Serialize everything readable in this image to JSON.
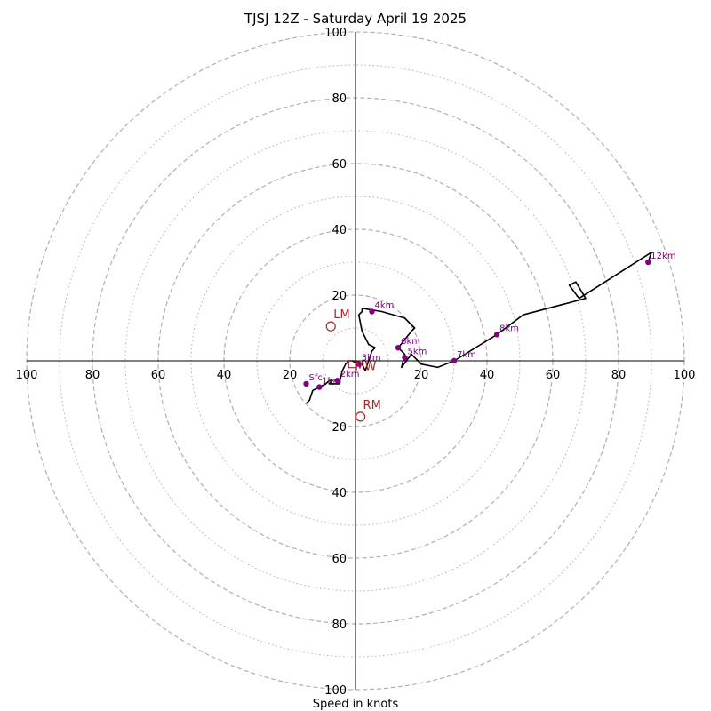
{
  "chart_data": {
    "type": "line",
    "title": "TJSJ 12Z - Saturday April 19 2025",
    "xlabel": "Speed in knots",
    "range": 100,
    "rings_dashed": [
      20,
      40,
      60,
      80,
      100
    ],
    "rings_dotted": [
      10,
      30,
      50,
      70,
      90
    ],
    "tick_labels": [
      "100",
      "80",
      "60",
      "40",
      "20",
      "20",
      "40",
      "60",
      "80",
      "100"
    ],
    "colors": {
      "hodograph": "#000000",
      "height_marker": "#800080",
      "motion": "#b22222",
      "ring": "#b0b0b0"
    },
    "hodograph": {
      "u": [
        -15,
        -14,
        -13,
        -11,
        -9,
        -8,
        -7,
        -8,
        -5,
        -4,
        -3,
        -2,
        -1,
        1,
        2,
        3,
        5,
        6,
        4,
        2,
        1,
        2,
        2,
        8,
        15,
        18,
        17,
        13,
        15,
        14,
        17,
        20,
        25,
        30,
        43,
        51,
        70,
        67,
        65,
        68,
        90,
        89
      ],
      "v": [
        -13,
        -12,
        -9,
        -8,
        -7,
        -6,
        -6,
        -7,
        -7,
        -3,
        -1,
        0,
        0,
        -1,
        -1,
        -3,
        3,
        4,
        5,
        9,
        14,
        15,
        16,
        15,
        13,
        10,
        9,
        4,
        2,
        -2,
        2,
        -1,
        -2,
        0,
        8,
        14,
        19,
        24,
        23,
        19,
        33,
        30
      ]
    },
    "height_markers": [
      {
        "label": "Sfc",
        "u": -15,
        "v": -7
      },
      {
        "label": "1km",
        "u": -11,
        "v": -8
      },
      {
        "label": "2km",
        "u": -5.5,
        "v": -6
      },
      {
        "label": "3km",
        "u": 1,
        "v": -1
      },
      {
        "label": "4km",
        "u": 5,
        "v": 15
      },
      {
        "label": "5km",
        "u": 15,
        "v": 1
      },
      {
        "label": "6km",
        "u": 13,
        "v": 4
      },
      {
        "label": "7km",
        "u": 30,
        "v": 0
      },
      {
        "label": "8km",
        "u": 43,
        "v": 8
      },
      {
        "label": "12km",
        "u": 89,
        "v": 30
      }
    ],
    "storm_motion": [
      {
        "label": "LM",
        "u": -7.5,
        "v": 10.5
      },
      {
        "label": "RM",
        "u": 1.5,
        "v": -17
      },
      {
        "label": "MW",
        "u": -1,
        "v": -1
      }
    ],
    "grid": true
  }
}
